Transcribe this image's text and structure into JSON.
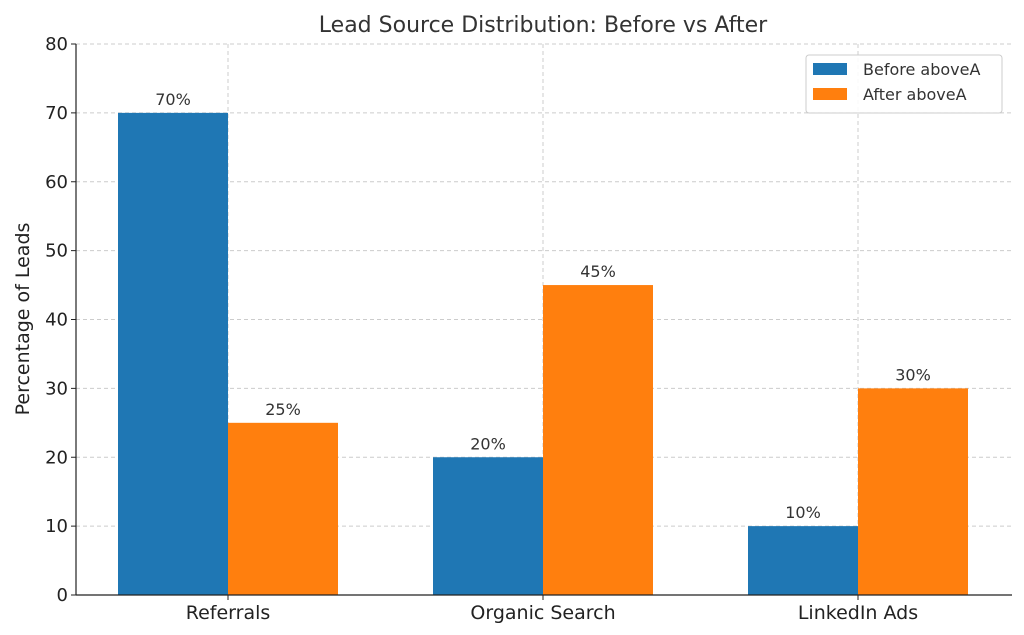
{
  "chart_data": {
    "type": "bar",
    "title": "Lead Source Distribution: Before vs After",
    "xlabel": "",
    "ylabel": "Percentage of Leads",
    "categories": [
      "Referrals",
      "Organic Search",
      "LinkedIn Ads"
    ],
    "series": [
      {
        "name": "Before aboveA",
        "values": [
          70,
          20,
          10
        ],
        "color": "#1f77b4",
        "labels": [
          "70%",
          "20%",
          "10%"
        ]
      },
      {
        "name": "After aboveA",
        "values": [
          25,
          45,
          30
        ],
        "color": "#ff7f0e",
        "labels": [
          "25%",
          "45%",
          "30%"
        ]
      }
    ],
    "ylim": [
      0,
      80
    ],
    "yticks": [
      0,
      10,
      20,
      30,
      40,
      50,
      60,
      70,
      80
    ],
    "grid": true,
    "legend_position": "top-right"
  }
}
